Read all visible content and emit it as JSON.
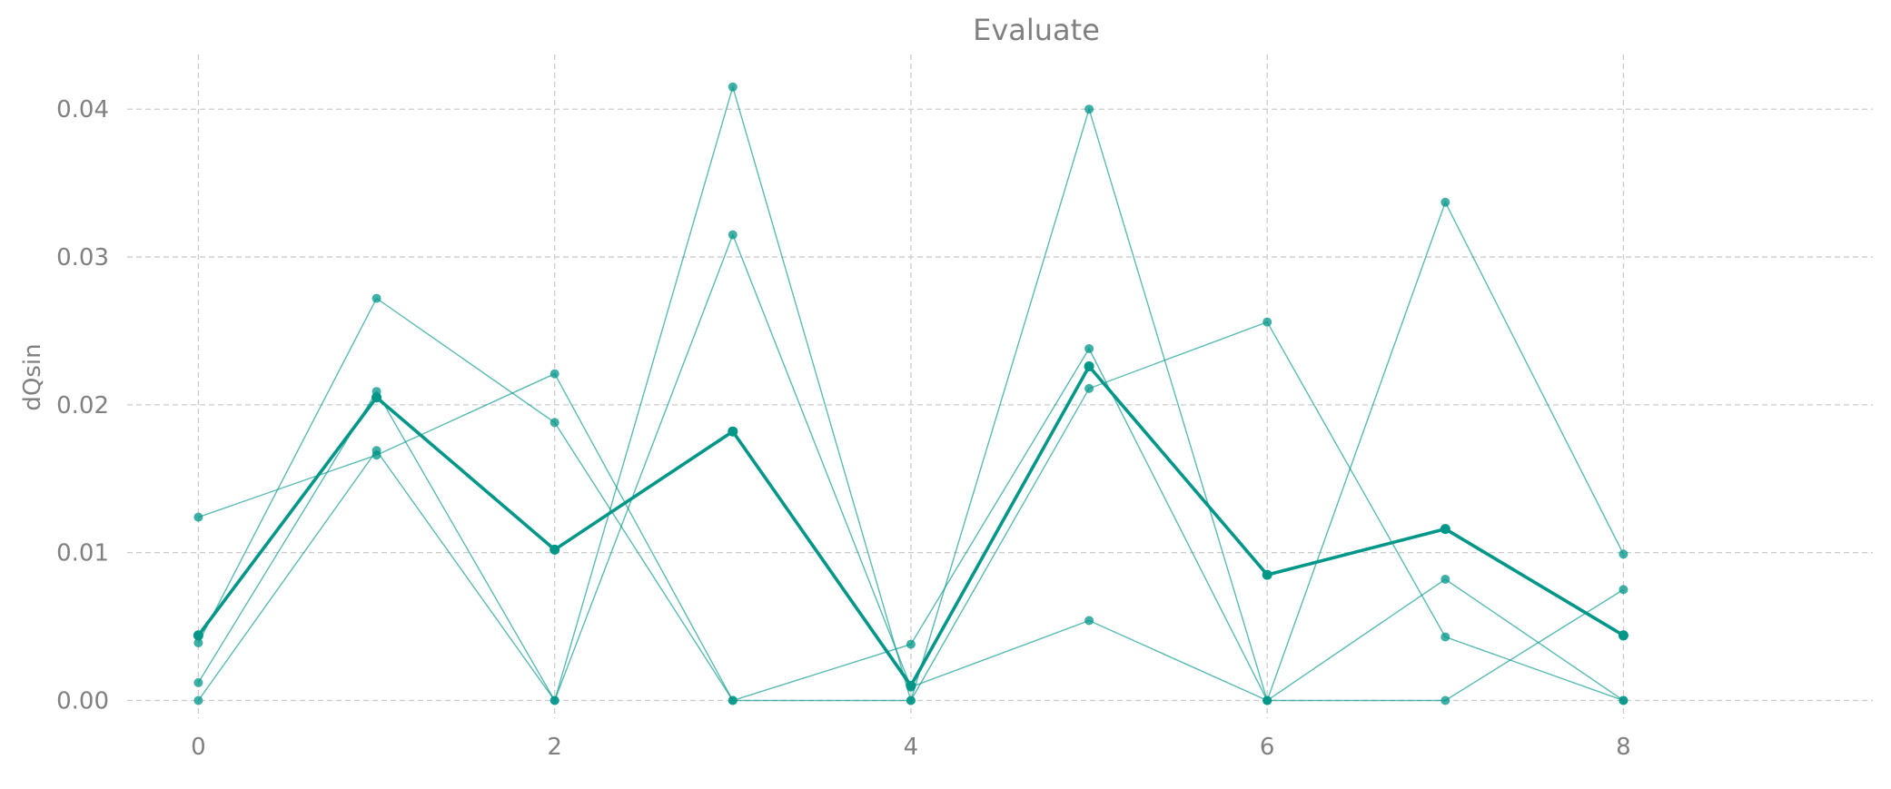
{
  "chart_data": {
    "type": "line",
    "title": "Evaluate",
    "xlabel": "",
    "ylabel": "dQsin",
    "xlim": [
      -0.4,
      9.4
    ],
    "ylim": [
      -0.0012,
      0.0437
    ],
    "grid": true,
    "x": [
      0,
      1,
      2,
      3,
      4,
      5,
      6,
      7,
      8
    ],
    "x_ticks": [
      0,
      2,
      4,
      6,
      8
    ],
    "x_tick_labels": [
      "0",
      "2",
      "4",
      "6",
      "8"
    ],
    "y_ticks": [
      0.0,
      0.01,
      0.02,
      0.03,
      0.04
    ],
    "y_tick_labels": [
      "0.00",
      "0.01",
      "0.02",
      "0.03",
      "0.04"
    ],
    "color": "#009688",
    "series": [
      {
        "values": [
          0.0124,
          0.0166,
          0.0221,
          0.0,
          0.0,
          0.0211,
          0.0256,
          0.0043,
          0.0
        ],
        "emphasis": false
      },
      {
        "values": [
          0.0039,
          0.0272,
          0.0188,
          0.0,
          0.0038,
          0.0238,
          0.0,
          0.0,
          0.0075
        ],
        "emphasis": false
      },
      {
        "values": [
          0.0012,
          0.0209,
          0.0,
          0.0415,
          0.0,
          0.04,
          0.0,
          0.0082,
          0.0
        ],
        "emphasis": false
      },
      {
        "values": [
          0.0,
          0.0169,
          0.0,
          0.0315,
          0.0009,
          0.0054,
          0.0,
          0.0337,
          0.0099
        ],
        "emphasis": false
      },
      {
        "values": [
          0.0044,
          0.0205,
          0.0102,
          0.0182,
          0.001,
          0.0226,
          0.0085,
          0.0116,
          0.0044
        ],
        "emphasis": true
      }
    ]
  }
}
